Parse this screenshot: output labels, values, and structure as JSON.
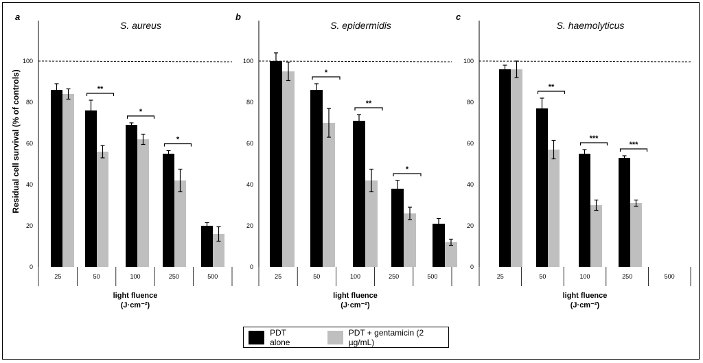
{
  "colors": {
    "pdt_alone": "#000000",
    "pdt_gentamicin": "#bfbfbf"
  },
  "y_axis_label": "Residual cell survival (% of controls)",
  "legend": [
    {
      "label": "PDT alone",
      "color": "#000000"
    },
    {
      "label": "PDT + gentamicin (2 µg/mL)",
      "color": "#bfbfbf"
    }
  ],
  "chart_data": [
    {
      "type": "bar",
      "panel": "a",
      "title": "S. aureus",
      "categories": [
        "25",
        "50",
        "100",
        "250",
        "500"
      ],
      "xlabel": "light fluence",
      "xlabel_unit": "(J·cm⁻²)",
      "ylim": [
        0,
        100
      ],
      "yticks": [
        0,
        20,
        40,
        60,
        80,
        100
      ],
      "reference_line": 100,
      "series": [
        {
          "values": [
            86,
            76,
            69,
            55,
            20
          ],
          "errors": [
            3,
            5,
            1,
            1.5,
            1.5
          ]
        },
        {
          "values": [
            84,
            56,
            62,
            42,
            16
          ],
          "errors": [
            2.5,
            3,
            2.5,
            5.5,
            3.5
          ]
        }
      ],
      "significance": [
        {
          "category": "50",
          "label": "**"
        },
        {
          "category": "100",
          "label": "*"
        },
        {
          "category": "250",
          "label": "*"
        }
      ]
    },
    {
      "type": "bar",
      "panel": "b",
      "title": "S. epidermidis",
      "categories": [
        "25",
        "50",
        "100",
        "250",
        "500"
      ],
      "xlabel": "light fluence",
      "xlabel_unit": "(J·cm⁻²)",
      "ylim": [
        0,
        100
      ],
      "yticks": [
        0,
        20,
        40,
        60,
        80,
        100
      ],
      "reference_line": 100,
      "series": [
        {
          "values": [
            100,
            86,
            71,
            38,
            21
          ],
          "errors": [
            4,
            3,
            3,
            4,
            2.5
          ]
        },
        {
          "values": [
            95,
            70,
            42,
            26,
            12
          ],
          "errors": [
            4.5,
            7,
            5.5,
            3,
            1.5
          ]
        }
      ],
      "significance": [
        {
          "category": "50",
          "label": "*"
        },
        {
          "category": "100",
          "label": "**"
        },
        {
          "category": "250",
          "label": "*"
        }
      ]
    },
    {
      "type": "bar",
      "panel": "c",
      "title": "S. haemolyticus",
      "categories": [
        "25",
        "50",
        "100",
        "250",
        "500"
      ],
      "xlabel": "light fluence",
      "xlabel_unit": "(J·cm⁻²)",
      "ylim": [
        0,
        100
      ],
      "yticks": [
        0,
        20,
        40,
        60,
        80,
        100
      ],
      "reference_line": 100,
      "series": [
        {
          "values": [
            96,
            77,
            55,
            53,
            null
          ],
          "errors": [
            2,
            5,
            2,
            1,
            null
          ]
        },
        {
          "values": [
            96,
            57,
            30,
            31,
            null
          ],
          "errors": [
            4,
            4.5,
            2.5,
            1.5,
            null
          ]
        }
      ],
      "significance": [
        {
          "category": "50",
          "label": "**"
        },
        {
          "category": "100",
          "label": "***"
        },
        {
          "category": "250",
          "label": "***"
        }
      ]
    }
  ]
}
